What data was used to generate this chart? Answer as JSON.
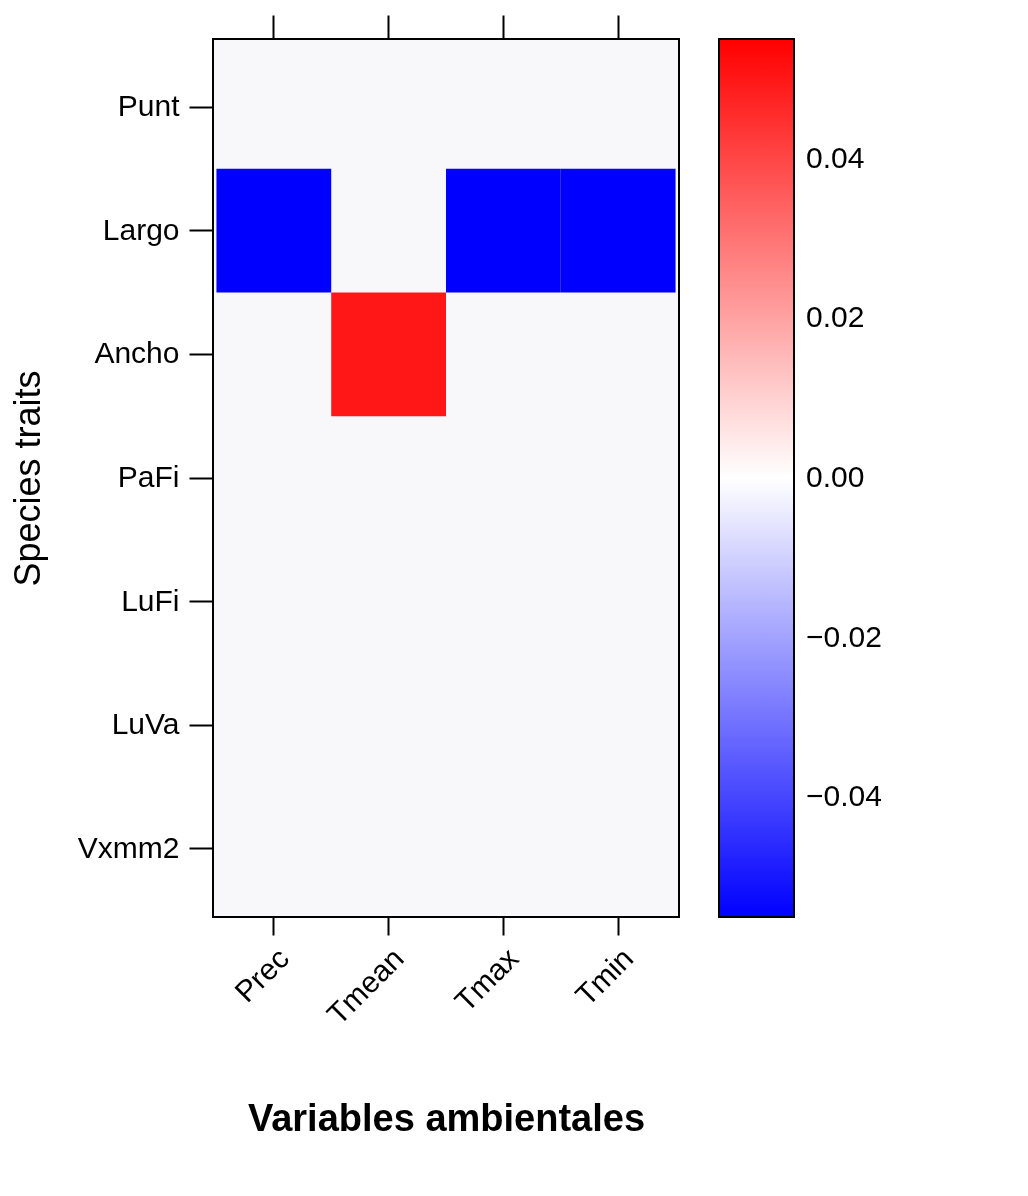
{
  "chart_data": {
    "type": "heatmap",
    "xlabel": "Variables ambientales",
    "ylabel": "Species traits",
    "categories": [
      "Prec",
      "Tmean",
      "Tmax",
      "Tmin"
    ],
    "y_categories": [
      "Punt",
      "Largo",
      "Ancho",
      "PaFi",
      "LuFi",
      "LuVa",
      "Vxmm2"
    ],
    "cells": [
      [
        null,
        null,
        null,
        null
      ],
      [
        -0.055,
        null,
        -0.055,
        -0.055
      ],
      [
        null,
        0.05,
        null,
        null
      ],
      [
        null,
        null,
        null,
        null
      ],
      [
        null,
        null,
        null,
        null
      ],
      [
        null,
        null,
        null,
        null
      ],
      [
        null,
        null,
        null,
        null
      ]
    ],
    "clim": [
      -0.055,
      0.055
    ],
    "cticks": [
      {
        "value": -0.04,
        "label": "−0.04"
      },
      {
        "value": -0.02,
        "label": "−0.02"
      },
      {
        "value": 0,
        "label": "0.00"
      },
      {
        "value": 0.02,
        "label": "0.02"
      },
      {
        "value": 0.04,
        "label": "0.04"
      }
    ]
  }
}
